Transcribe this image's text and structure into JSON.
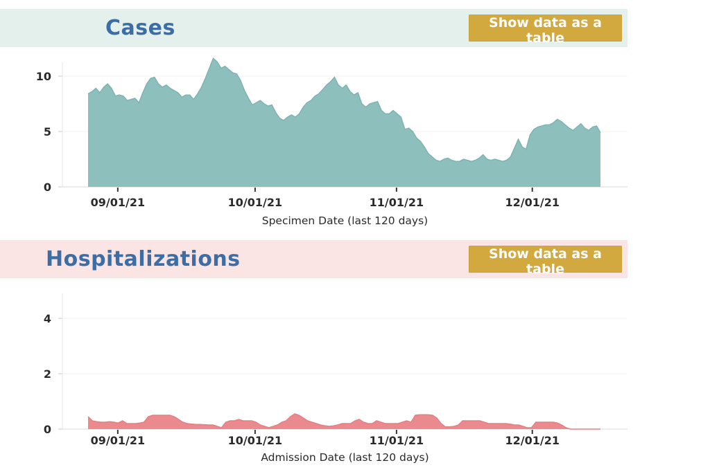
{
  "panels": [
    {
      "title": "Cases",
      "button_label": "Show data as a table"
    },
    {
      "title": "Hospitalizations",
      "button_label": "Show data as a table"
    }
  ],
  "colors": {
    "cases_header_bg": "#e3f0ec",
    "hospitalizations_header_bg": "#fbe5e4",
    "title_blue": "#3c6ea5",
    "button_gold": "#d2a93f",
    "cases_area_fill": "#8dbfbc",
    "cases_area_stroke": "#7db3b0",
    "hospitalizations_area_fill": "#ea8a8e",
    "hospitalizations_area_stroke": "#e57f84",
    "axis_text": "#2a2a2a"
  },
  "chart_data": [
    {
      "type": "area",
      "title": "Cases",
      "xlabel": "Specimen Date (last 120 days)",
      "ylabel": "",
      "y_ticks": [
        0,
        5,
        10
      ],
      "ylim": [
        0,
        12
      ],
      "grid": "faint-horizontal",
      "legend": "none",
      "x_tick_labels": [
        "09/01/21",
        "10/01/21",
        "11/01/21",
        "12/01/21"
      ],
      "x_tick_positions": [
        0.058,
        0.326,
        0.602,
        0.867
      ],
      "fill": "#8dbfbc",
      "stroke": "#7db3b0",
      "values": [
        8.4,
        8.6,
        8.9,
        8.5,
        9.0,
        9.3,
        8.9,
        8.2,
        8.3,
        8.2,
        7.8,
        7.9,
        8.0,
        7.6,
        8.5,
        9.3,
        9.8,
        9.9,
        9.3,
        9.0,
        9.2,
        8.9,
        8.7,
        8.5,
        8.1,
        8.3,
        8.3,
        7.9,
        8.4,
        9.0,
        9.8,
        10.7,
        11.6,
        11.3,
        10.7,
        10.9,
        10.6,
        10.3,
        10.2,
        9.6,
        8.7,
        8.0,
        7.4,
        7.6,
        7.8,
        7.5,
        7.3,
        7.4,
        6.7,
        6.2,
        6.0,
        6.3,
        6.5,
        6.3,
        6.6,
        7.2,
        7.6,
        7.8,
        8.2,
        8.4,
        8.8,
        9.2,
        9.5,
        9.9,
        9.2,
        8.9,
        9.2,
        8.6,
        8.3,
        8.5,
        7.5,
        7.2,
        7.5,
        7.6,
        7.7,
        6.9,
        6.6,
        6.6,
        6.9,
        6.6,
        6.3,
        5.2,
        5.3,
        5.0,
        4.4,
        4.1,
        3.6,
        3.0,
        2.7,
        2.4,
        2.3,
        2.5,
        2.6,
        2.4,
        2.3,
        2.3,
        2.5,
        2.4,
        2.3,
        2.4,
        2.6,
        2.9,
        2.5,
        2.4,
        2.5,
        2.4,
        2.3,
        2.4,
        2.7,
        3.5,
        4.3,
        3.6,
        3.4,
        4.7,
        5.2,
        5.4,
        5.5,
        5.6,
        5.6,
        5.8,
        6.1,
        5.9,
        5.6,
        5.3,
        5.1,
        5.4,
        5.7,
        5.3,
        5.1,
        5.4,
        5.5,
        4.9
      ]
    },
    {
      "type": "area",
      "title": "Hospitalizations",
      "xlabel": "Admission Date (last 120 days)",
      "ylabel": "",
      "y_ticks": [
        0,
        2,
        4
      ],
      "ylim": [
        0,
        5
      ],
      "grid": "faint-horizontal",
      "legend": "none",
      "x_tick_labels": [
        "09/01/21",
        "10/01/21",
        "11/01/21",
        "12/01/21"
      ],
      "x_tick_positions": [
        0.058,
        0.326,
        0.602,
        0.867
      ],
      "fill": "#ea8a8e",
      "stroke": "#e57f84",
      "values": [
        0.45,
        0.3,
        0.27,
        0.25,
        0.25,
        0.27,
        0.25,
        0.22,
        0.3,
        0.2,
        0.2,
        0.2,
        0.22,
        0.25,
        0.45,
        0.5,
        0.5,
        0.5,
        0.5,
        0.5,
        0.45,
        0.35,
        0.25,
        0.2,
        0.18,
        0.17,
        0.17,
        0.16,
        0.15,
        0.15,
        0.1,
        0.05,
        0.25,
        0.3,
        0.3,
        0.35,
        0.3,
        0.3,
        0.3,
        0.25,
        0.15,
        0.1,
        0.05,
        0.1,
        0.15,
        0.25,
        0.3,
        0.45,
        0.55,
        0.5,
        0.4,
        0.3,
        0.25,
        0.2,
        0.15,
        0.12,
        0.1,
        0.12,
        0.15,
        0.2,
        0.2,
        0.2,
        0.3,
        0.35,
        0.25,
        0.2,
        0.2,
        0.3,
        0.25,
        0.2,
        0.2,
        0.2,
        0.2,
        0.25,
        0.3,
        0.25,
        0.5,
        0.52,
        0.52,
        0.52,
        0.5,
        0.4,
        0.2,
        0.08,
        0.08,
        0.1,
        0.15,
        0.3,
        0.3,
        0.3,
        0.3,
        0.3,
        0.25,
        0.2,
        0.2,
        0.2,
        0.2,
        0.2,
        0.18,
        0.15,
        0.15,
        0.1,
        0.05,
        0.05,
        0.25,
        0.25,
        0.25,
        0.25,
        0.25,
        0.22,
        0.15,
        0.05,
        0,
        0,
        0,
        0,
        0,
        0,
        0,
        0
      ]
    }
  ]
}
